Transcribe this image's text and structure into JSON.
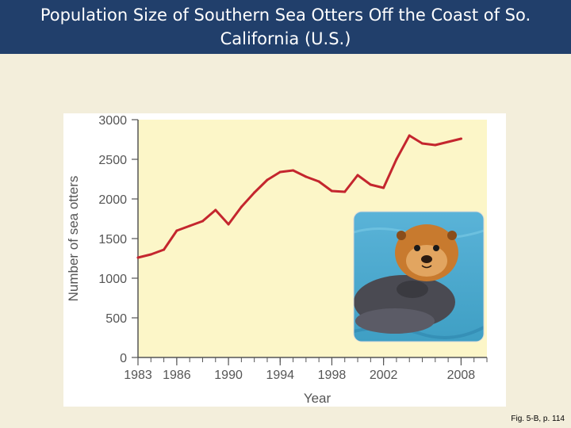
{
  "slide": {
    "title": "Population Size of Southern Sea Otters Off the Coast of So. California (U.S.)",
    "credit": "Fig. 5-B, p. 114"
  },
  "chart_data": {
    "type": "line",
    "title": "",
    "xlabel": "Year",
    "ylabel": "Number of sea otters",
    "xlim": [
      1983,
      2010
    ],
    "ylim": [
      0,
      3000
    ],
    "x_ticks": [
      1983,
      1986,
      1990,
      1994,
      1998,
      2002,
      2008
    ],
    "x_minor_ticks": [
      1983,
      1984,
      1985,
      1986,
      1987,
      1988,
      1989,
      1990,
      1991,
      1992,
      1993,
      1994,
      1995,
      1996,
      1997,
      1998,
      1999,
      2000,
      2001,
      2002,
      2003,
      2004,
      2005,
      2006,
      2007,
      2008,
      2009,
      2010
    ],
    "y_ticks": [
      0,
      500,
      1000,
      1500,
      2000,
      2500,
      3000
    ],
    "grid": false,
    "colors": {
      "line": "#c4262e",
      "plot_bg": "#fcf6c8",
      "axis": "#555555"
    },
    "series": [
      {
        "x": [
          1983,
          1984,
          1985,
          1986,
          1987,
          1988,
          1989,
          1990,
          1991,
          1992,
          1993,
          1994,
          1995,
          1996,
          1997,
          1998,
          1999,
          2000,
          2001,
          2002,
          2003,
          2004,
          2005,
          2006,
          2007,
          2008
        ],
        "values": [
          1260,
          1300,
          1360,
          1600,
          1660,
          1720,
          1860,
          1680,
          1900,
          2080,
          2240,
          2340,
          2360,
          2280,
          2220,
          2100,
          2090,
          2300,
          2180,
          2140,
          2500,
          2800,
          2700,
          2680,
          2720,
          2760
        ]
      }
    ]
  },
  "photo": {
    "subject": "sea-otter-photo"
  }
}
